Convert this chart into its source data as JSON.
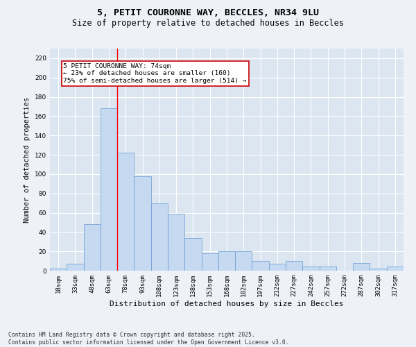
{
  "title_line1": "5, PETIT COURONNE WAY, BECCLES, NR34 9LU",
  "title_line2": "Size of property relative to detached houses in Beccles",
  "xlabel": "Distribution of detached houses by size in Beccles",
  "ylabel": "Number of detached properties",
  "bar_color": "#c5d9f1",
  "bar_edge_color": "#6899d0",
  "background_color": "#dce6f1",
  "grid_color": "#ffffff",
  "fig_bg_color": "#eef2f8",
  "categories": [
    "18sqm",
    "33sqm",
    "48sqm",
    "63sqm",
    "78sqm",
    "93sqm",
    "108sqm",
    "123sqm",
    "138sqm",
    "153sqm",
    "168sqm",
    "182sqm",
    "197sqm",
    "212sqm",
    "227sqm",
    "242sqm",
    "257sqm",
    "272sqm",
    "287sqm",
    "302sqm",
    "317sqm"
  ],
  "values": [
    2,
    7,
    48,
    168,
    122,
    98,
    70,
    59,
    34,
    18,
    20,
    20,
    10,
    7,
    10,
    4,
    4,
    0,
    8,
    2,
    4
  ],
  "annotation_text": "5 PETIT COURONNE WAY: 74sqm\n← 23% of detached houses are smaller (160)\n75% of semi-detached houses are larger (514) →",
  "annotation_box_color": "#ffffff",
  "annotation_border_color": "#cc0000",
  "ylim": [
    0,
    230
  ],
  "yticks": [
    0,
    20,
    40,
    60,
    80,
    100,
    120,
    140,
    160,
    180,
    200,
    220
  ],
  "footnote": "Contains HM Land Registry data © Crown copyright and database right 2025.\nContains public sector information licensed under the Open Government Licence v3.0.",
  "title_fontsize": 9.5,
  "subtitle_fontsize": 8.5,
  "axis_label_fontsize": 8,
  "tick_fontsize": 6.5,
  "annotation_fontsize": 6.8,
  "footnote_fontsize": 5.8,
  "ylabel_fontsize": 7.5
}
